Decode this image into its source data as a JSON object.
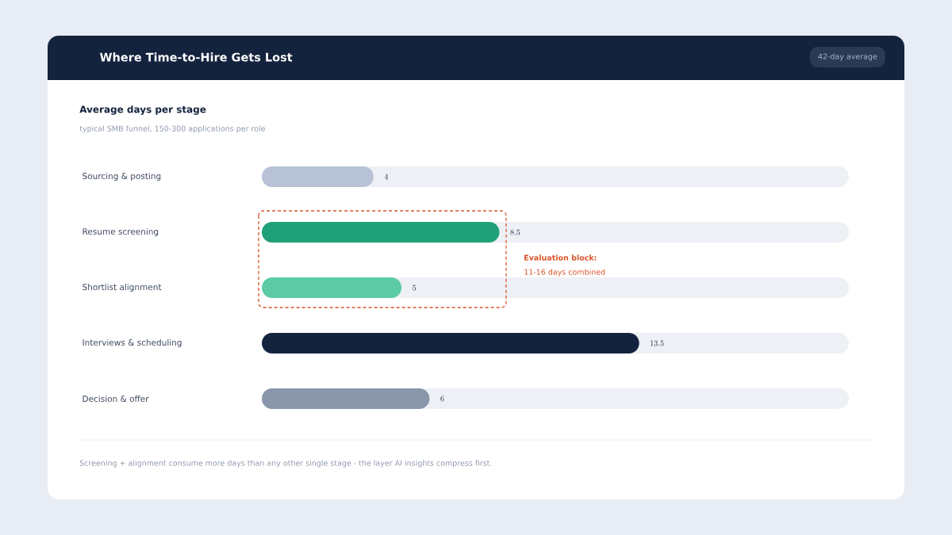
{
  "chart_data": {
    "type": "bar",
    "orientation": "horizontal",
    "title": "Where Time-to-Hire Gets Lost",
    "subtitle": "Average days per stage",
    "categories": [
      "Sourcing & posting",
      "Resume screening",
      "Shortlist alignment",
      "Interviews & scheduling",
      "Decision & offer"
    ],
    "values": [
      4,
      8.5,
      5,
      13.5,
      6
    ],
    "colors": [
      "#b8c2d6",
      "#1fa078",
      "#5ccba5",
      "#14233d",
      "#8a97ab"
    ],
    "xlim": [
      0,
      21
    ],
    "tick_labels": "y",
    "data_labels": true,
    "annotations": [
      "42-day average",
      "typical SMB funnel, 150-300 applications per role",
      "Evaluation block:",
      "11-16 days combined",
      "Screening + alignment consume more days than any other single stage - the layer AI insights compress first."
    ]
  }
}
